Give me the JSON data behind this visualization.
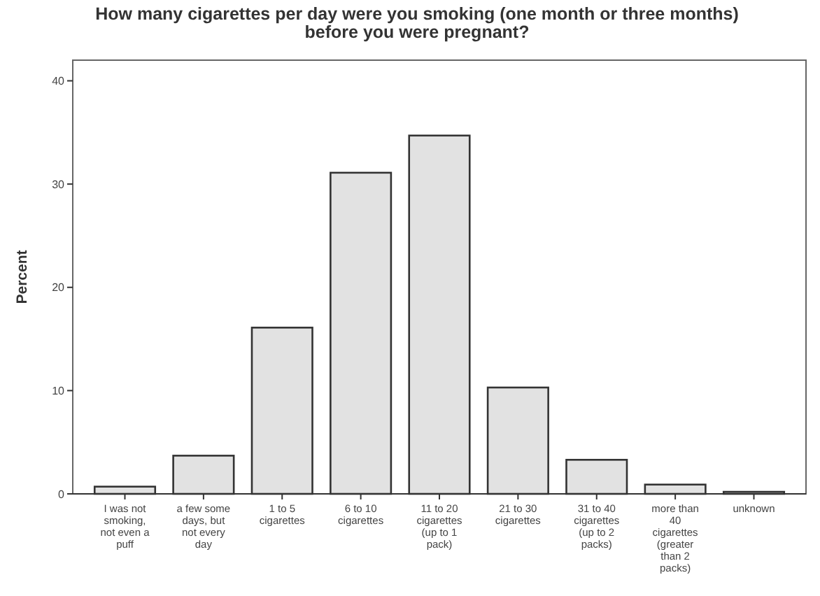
{
  "chart_data": {
    "type": "bar",
    "title": "How many cigarettes per day were you smoking (one month or three months) before you were pregnant?",
    "ylabel": "Percent",
    "categories": [
      "I was not smoking, not even a puff",
      "a few some days, but not every day",
      "1 to 5 cigarettes",
      "6 to 10 cigarettes",
      "11 to 20 cigarettes (up to 1 pack)",
      "21 to 30 cigarettes",
      "31 to 40 cigarettes (up to 2 packs)",
      "more than 40 cigarettes (greater than 2 packs)",
      "unknown"
    ],
    "values": [
      0.7,
      3.7,
      16.1,
      31.1,
      34.7,
      10.3,
      3.3,
      0.9,
      0.2
    ],
    "color": "#e2e2e2",
    "ylim": [
      0,
      42
    ],
    "yticks": [
      0,
      10,
      20,
      30,
      40
    ],
    "grid": false
  }
}
